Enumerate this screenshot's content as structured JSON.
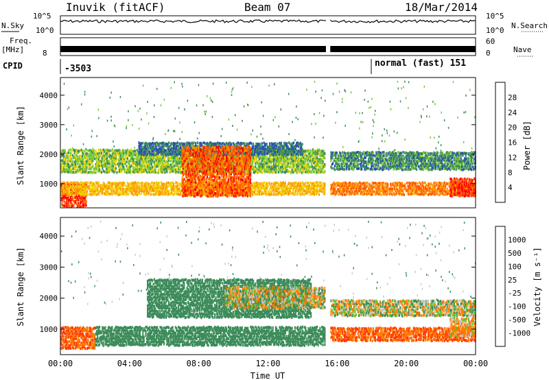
{
  "header": {
    "station": "Inuvik (fitACF)",
    "beam": "Beam 07",
    "date": "18/Mar/2014"
  },
  "ancillary": {
    "nsky_label": "N.Sky",
    "nsky_ticks": [
      "10^5",
      "10^0"
    ],
    "nsearch_label": "N.Search",
    "nsearch_ticks": [
      "10^5",
      "10^0"
    ],
    "freq_label": "Freq.",
    "freq_unit": "[MHz]",
    "freq_tick": "8",
    "nave_label": "Nave",
    "nave_ticks": [
      "60",
      "0"
    ],
    "cpid_label": "CPID",
    "cpid_value_1": "-3503",
    "cpid_value_2": "normal (fast) 151"
  },
  "chart_data": [
    {
      "type": "heatmap",
      "ylabel": "Slant Range [km]",
      "yticks": [
        "4000",
        "3000",
        "2000",
        "1000"
      ],
      "ylim": [
        180,
        4600
      ],
      "colorbar_title": "Power [dB]",
      "colorbar_ticks": [
        "28",
        "24",
        "20",
        "16",
        "12",
        "8",
        "4"
      ],
      "colorbar_colors": [
        "#ff0000",
        "#ff5a00",
        "#ff9a00",
        "#f0d000",
        "#78c832",
        "#3c8c5a",
        "#2850b4",
        "#0000ff"
      ],
      "data_gap_hours": [
        15.35,
        15.6
      ],
      "bands": [
        {
          "t0": 0.0,
          "t1": 1.5,
          "r0": 250,
          "r1": 1000,
          "value": 28
        },
        {
          "t0": 0.0,
          "t1": 15.3,
          "r0": 650,
          "r1": 1050,
          "value": 20
        },
        {
          "t0": 0.0,
          "t1": 15.3,
          "r0": 1400,
          "r1": 2100,
          "value": 14
        },
        {
          "t0": 4.5,
          "t1": 14.0,
          "r0": 2000,
          "r1": 2400,
          "value": 8
        },
        {
          "t0": 7.0,
          "t1": 11.0,
          "r0": 600,
          "r1": 2200,
          "value": 26
        },
        {
          "t0": 15.6,
          "t1": 24.0,
          "r0": 650,
          "r1": 1050,
          "value": 24
        },
        {
          "t0": 15.6,
          "t1": 24.0,
          "r0": 1500,
          "r1": 2000,
          "value": 10
        },
        {
          "t0": 22.5,
          "t1": 24.0,
          "r0": 600,
          "r1": 1100,
          "value": 28
        }
      ]
    },
    {
      "type": "heatmap",
      "xlabel": "Time UT",
      "xticks": [
        "00:00",
        "04:00",
        "08:00",
        "12:00",
        "16:00",
        "20:00",
        "00:00"
      ],
      "xlim": [
        0,
        24
      ],
      "ylabel": "Slant Range [km]",
      "yticks": [
        "4000",
        "3000",
        "2000",
        "1000"
      ],
      "ylim": [
        180,
        4600
      ],
      "colorbar_title": "Velocity [m s⁻¹]",
      "colorbar_ticks": [
        "1000",
        "500",
        "100",
        "25",
        "-25",
        "-100",
        "-500",
        "-1000"
      ],
      "colorbar_colors": [
        "#1e3ca0",
        "#2878b4",
        "#3c8c5a",
        "#5ac83c",
        "#c8c8c8",
        "#f0b450",
        "#ff7800",
        "#ff3c00",
        "#ff0000"
      ],
      "data_gap_hours": [
        15.35,
        15.6
      ],
      "bands": [
        {
          "t0": 0.0,
          "t1": 2.0,
          "r0": 400,
          "r1": 1000,
          "value": -500
        },
        {
          "t0": 2.0,
          "t1": 15.3,
          "r0": 500,
          "r1": 1050,
          "value": 300
        },
        {
          "t0": 5.0,
          "t1": 14.5,
          "r0": 1400,
          "r1": 2600,
          "value": 300
        },
        {
          "t0": 9.5,
          "t1": 15.3,
          "r0": 1700,
          "r1": 2300,
          "value": 0
        },
        {
          "t0": 15.6,
          "t1": 24.0,
          "r0": 650,
          "r1": 1050,
          "value": -500
        },
        {
          "t0": 15.6,
          "t1": 24.0,
          "r0": 1450,
          "r1": 1900,
          "value": 0
        },
        {
          "t0": 22.5,
          "t1": 24.0,
          "r0": 800,
          "r1": 1300,
          "value": -100
        }
      ]
    }
  ]
}
